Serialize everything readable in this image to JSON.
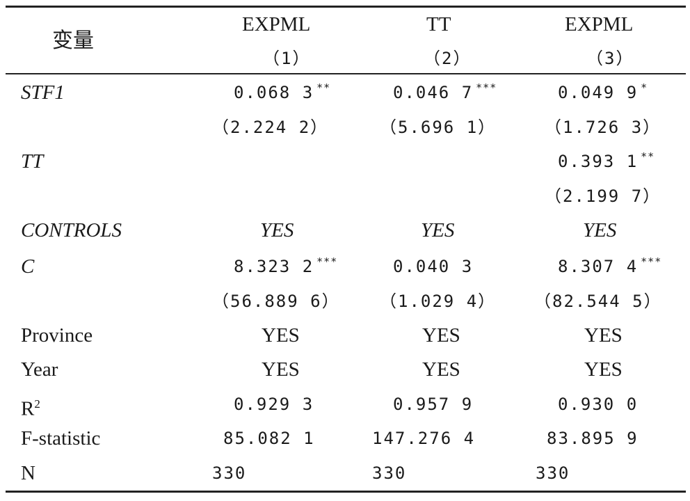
{
  "header": {
    "var_label": "变量",
    "cols": [
      {
        "name": "EXPML",
        "num": "（1）"
      },
      {
        "name": "TT",
        "num": "（2）"
      },
      {
        "name": "EXPML",
        "num": "（3）"
      }
    ]
  },
  "rows": {
    "stf1": {
      "label": "STF1",
      "v1": "0.068 3",
      "s1": "**",
      "t1": "（2.224 2）",
      "v2": "0.046 7",
      "s2": "***",
      "t2": "（5.696 1）",
      "v3": "0.049 9",
      "s3": "*",
      "t3": "（1.726 3）"
    },
    "tt": {
      "label": "TT",
      "v3": "0.393 1",
      "s3": "**",
      "t3": "（2.199 7）"
    },
    "controls": {
      "label": "CONTROLS",
      "v1": "YES",
      "v2": "YES",
      "v3": "YES"
    },
    "c": {
      "label": "C",
      "v1": "8.323 2",
      "s1": "***",
      "t1": "（56.889 6）",
      "v2": "0.040 3",
      "t2": "（1.029 4）",
      "v3": "8.307 4",
      "s3": "***",
      "t3": "（82.544 5）"
    },
    "province": {
      "label": "Province",
      "v1": "YES",
      "v2": "YES",
      "v3": "YES"
    },
    "year": {
      "label": "Year",
      "v1": "YES",
      "v2": "YES",
      "v3": "YES"
    },
    "r2": {
      "label": "R",
      "sup": "2",
      "v1": "0.929 3",
      "v2": "0.957 9",
      "v3": "0.930 0"
    },
    "fstat": {
      "label": "F-statistic",
      "v1": "85.082 1",
      "v2": "147.276 4",
      "v3": "83.895 9"
    },
    "n": {
      "label": "N",
      "v1": "330",
      "v2": "330",
      "v3": "330"
    }
  }
}
